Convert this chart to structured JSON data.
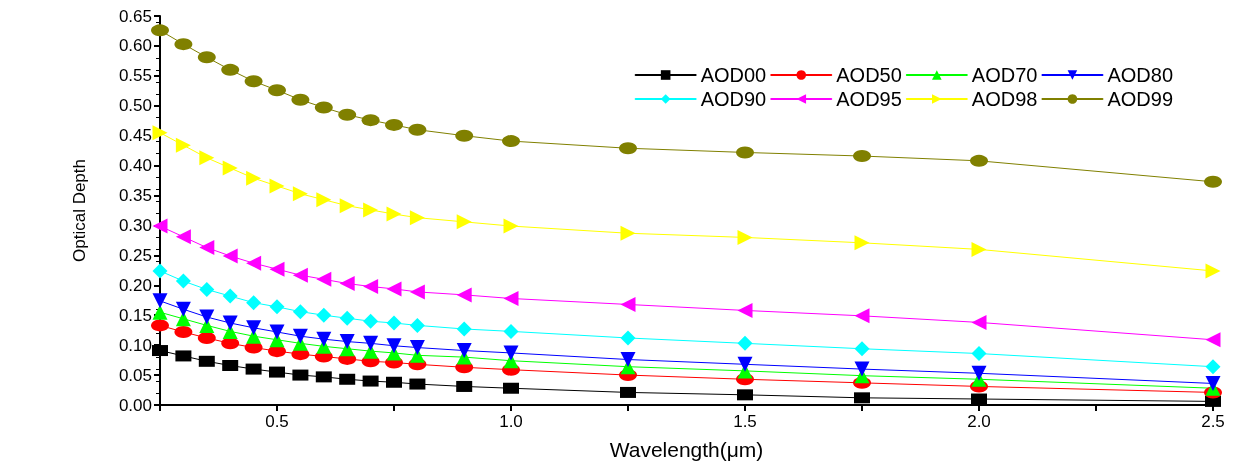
{
  "chart_data": {
    "type": "line",
    "xlabel": "Wavelength(μm)",
    "ylabel": "Optical Depth",
    "x": [
      0.25,
      0.3,
      0.35,
      0.4,
      0.45,
      0.5,
      0.55,
      0.6,
      0.65,
      0.7,
      0.75,
      0.8,
      0.9,
      1.0,
      1.25,
      1.5,
      1.75,
      2.0,
      2.5
    ],
    "series": [
      {
        "name": "AOD00",
        "color": "#000000",
        "marker": "square",
        "values": [
          0.091,
          0.082,
          0.073,
          0.066,
          0.06,
          0.055,
          0.05,
          0.047,
          0.043,
          0.04,
          0.038,
          0.035,
          0.031,
          0.028,
          0.021,
          0.017,
          0.012,
          0.01,
          0.006
        ]
      },
      {
        "name": "AOD50",
        "color": "#ff0000",
        "marker": "circle",
        "values": [
          0.133,
          0.122,
          0.112,
          0.103,
          0.096,
          0.09,
          0.085,
          0.081,
          0.077,
          0.073,
          0.071,
          0.068,
          0.063,
          0.059,
          0.05,
          0.043,
          0.037,
          0.031,
          0.021
        ]
      },
      {
        "name": "AOD70",
        "color": "#00ff00",
        "marker": "triangle",
        "values": [
          0.155,
          0.144,
          0.133,
          0.123,
          0.115,
          0.109,
          0.103,
          0.098,
          0.094,
          0.09,
          0.087,
          0.083,
          0.08,
          0.074,
          0.064,
          0.057,
          0.049,
          0.043,
          0.028
        ]
      },
      {
        "name": "AOD80",
        "color": "#0000ff",
        "marker": "triangle-down",
        "values": [
          0.174,
          0.16,
          0.147,
          0.137,
          0.129,
          0.122,
          0.115,
          0.11,
          0.106,
          0.103,
          0.099,
          0.096,
          0.091,
          0.087,
          0.076,
          0.068,
          0.06,
          0.053,
          0.036
        ]
      },
      {
        "name": "AOD90",
        "color": "#00ffff",
        "marker": "diamond",
        "values": [
          0.224,
          0.207,
          0.193,
          0.182,
          0.171,
          0.164,
          0.156,
          0.15,
          0.145,
          0.14,
          0.137,
          0.133,
          0.127,
          0.123,
          0.112,
          0.103,
          0.094,
          0.086,
          0.064
        ]
      },
      {
        "name": "AOD95",
        "color": "#ff00ff",
        "marker": "triangle-left",
        "values": [
          0.299,
          0.281,
          0.263,
          0.249,
          0.237,
          0.227,
          0.217,
          0.21,
          0.203,
          0.198,
          0.194,
          0.189,
          0.184,
          0.178,
          0.168,
          0.158,
          0.149,
          0.138,
          0.109
        ]
      },
      {
        "name": "AOD98",
        "color": "#ffff00",
        "marker": "triangle-right",
        "values": [
          0.455,
          0.434,
          0.413,
          0.396,
          0.379,
          0.366,
          0.353,
          0.343,
          0.333,
          0.326,
          0.319,
          0.313,
          0.306,
          0.299,
          0.287,
          0.28,
          0.271,
          0.26,
          0.224
        ]
      },
      {
        "name": "AOD99",
        "color": "#808000",
        "marker": "circle",
        "values": [
          0.626,
          0.603,
          0.581,
          0.56,
          0.541,
          0.526,
          0.51,
          0.497,
          0.485,
          0.476,
          0.468,
          0.46,
          0.45,
          0.441,
          0.429,
          0.422,
          0.416,
          0.408,
          0.373
        ]
      }
    ],
    "xlim": [
      0.25,
      2.5
    ],
    "xticks": [
      {
        "value": 0.25,
        "label": null
      },
      {
        "value": 0.5,
        "label": "0.5"
      },
      {
        "value": 0.75,
        "label": null
      },
      {
        "value": 1.0,
        "label": "1.0"
      },
      {
        "value": 1.25,
        "label": null
      },
      {
        "value": 1.5,
        "label": "1.5"
      },
      {
        "value": 1.75,
        "label": null
      },
      {
        "value": 2.0,
        "label": "2.0"
      },
      {
        "value": 2.25,
        "label": null
      },
      {
        "value": 2.5,
        "label": "2.5"
      }
    ],
    "ylim": [
      0,
      0.65
    ],
    "yticks": [
      {
        "value": 0,
        "label": "0.00"
      },
      {
        "value": 0.05,
        "label": "0.05"
      },
      {
        "value": 0.1,
        "label": "0.10"
      },
      {
        "value": 0.15,
        "label": "0.15"
      },
      {
        "value": 0.2,
        "label": "0.20"
      },
      {
        "value": 0.25,
        "label": "0.25"
      },
      {
        "value": 0.3,
        "label": "0.30"
      },
      {
        "value": 0.35,
        "label": "0.35"
      },
      {
        "value": 0.4,
        "label": "0.40"
      },
      {
        "value": 0.45,
        "label": "0.45"
      },
      {
        "value": 0.5,
        "label": "0.50"
      },
      {
        "value": 0.55,
        "label": "0.55"
      },
      {
        "value": 0.6,
        "label": "0.60"
      },
      {
        "value": 0.65,
        "label": "0.65"
      }
    ],
    "grid": false,
    "legend": "top right",
    "line_style": "solid"
  }
}
